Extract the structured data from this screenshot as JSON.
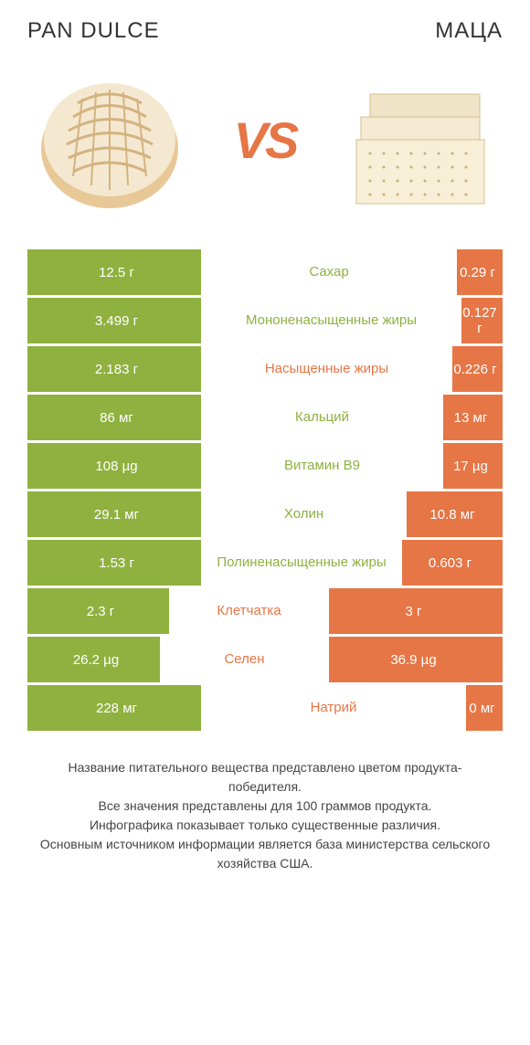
{
  "titles": {
    "left": "PAN DULCE",
    "right": "МАЦА"
  },
  "vs": "VS",
  "colors": {
    "green": "#8fb13f",
    "orange": "#e67645",
    "green_text": "#8fb13f",
    "orange_text": "#e67645",
    "bg": "#ffffff"
  },
  "bar": {
    "total_width": 520,
    "left_max": 190,
    "right_max": 190,
    "center_width": 140
  },
  "rows": [
    {
      "label": "Сахар",
      "left_val": "12.5 г",
      "right_val": "0.29 г",
      "left_width": 190,
      "right_width": 50,
      "winner": "left"
    },
    {
      "label": "Мононенасыщенные жиры",
      "left_val": "3.499 г",
      "right_val": "0.127 г",
      "left_width": 190,
      "right_width": 45,
      "winner": "left"
    },
    {
      "label": "Насыщенные жиры",
      "left_val": "2.183 г",
      "right_val": "0.226 г",
      "left_width": 190,
      "right_width": 55,
      "winner": "right"
    },
    {
      "label": "Кальций",
      "left_val": "86 мг",
      "right_val": "13 мг",
      "left_width": 190,
      "right_width": 65,
      "winner": "left"
    },
    {
      "label": "Витамин B9",
      "left_val": "108 µg",
      "right_val": "17 µg",
      "left_width": 190,
      "right_width": 65,
      "winner": "left"
    },
    {
      "label": "Холин",
      "left_val": "29.1 мг",
      "right_val": "10.8 мг",
      "left_width": 190,
      "right_width": 105,
      "winner": "left"
    },
    {
      "label": "Полиненасыщенные жиры",
      "left_val": "1.53 г",
      "right_val": "0.603 г",
      "left_width": 190,
      "right_width": 110,
      "winner": "left"
    },
    {
      "label": "Клетчатка",
      "left_val": "2.3 г",
      "right_val": "3 г",
      "left_width": 155,
      "right_width": 190,
      "winner": "right"
    },
    {
      "label": "Селен",
      "left_val": "26.2 µg",
      "right_val": "36.9 µg",
      "left_width": 145,
      "right_width": 190,
      "winner": "right"
    },
    {
      "label": "Натрий",
      "left_val": "228 мг",
      "right_val": "0 мг",
      "left_width": 190,
      "right_width": 40,
      "winner": "right"
    }
  ],
  "footnote": "Название питательного вещества представлено цветом продукта-победителя.\nВсе значения представлены для 100 граммов продукта.\nИнфографика показывает только существенные различия.\nОсновным источником информации является база министерства сельского хозяйства США."
}
